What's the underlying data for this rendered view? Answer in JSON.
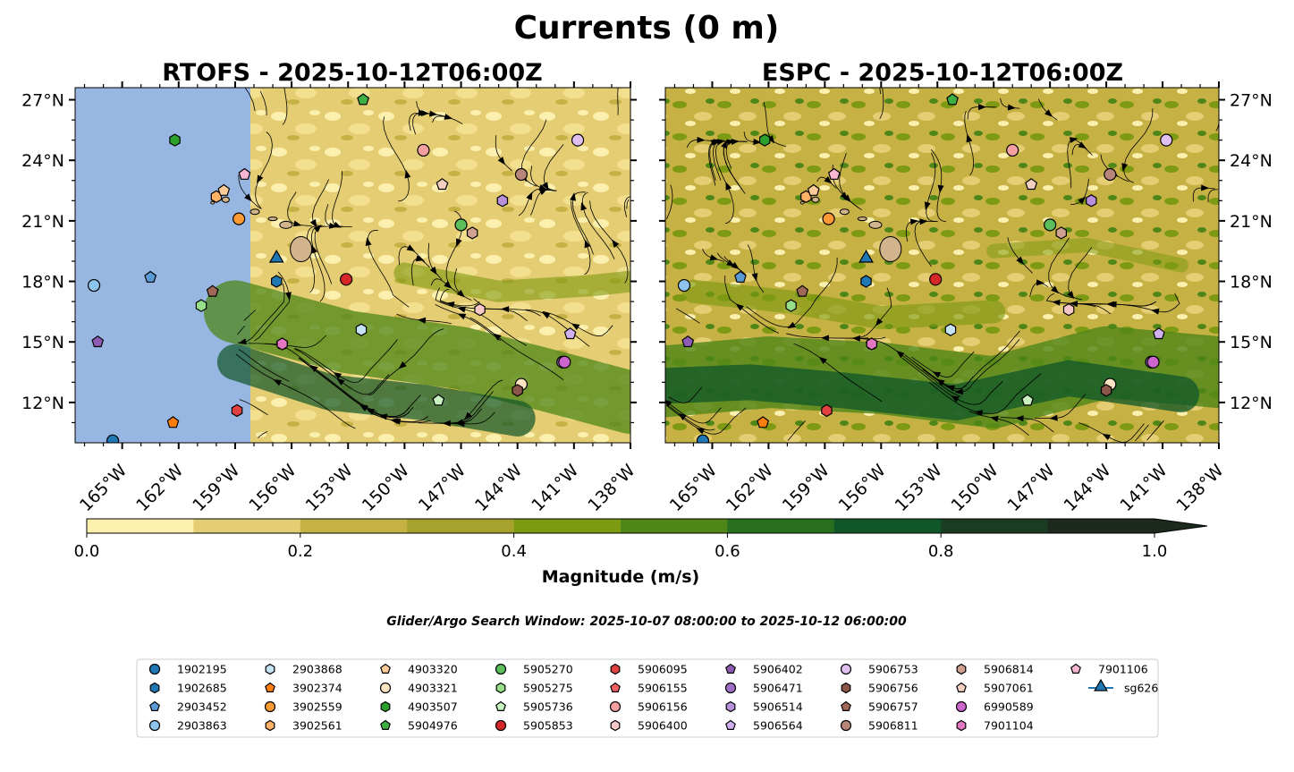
{
  "figure": {
    "title": "Currents (0 m)",
    "search_window": "Glider/Argo Search Window: 2025-10-07 08:00:00 to 2025-10-12 06:00:00"
  },
  "chart_data": [
    {
      "type": "heatmap",
      "title": "RTOFS - 2025-10-12T06:00Z",
      "lon_range": [
        -168,
        -138
      ],
      "lat_range": [
        10,
        28
      ],
      "x_ticks": [
        "165°W",
        "162°W",
        "159°W",
        "156°W",
        "153°W",
        "150°W",
        "147°W",
        "144°W",
        "141°W",
        "138°W"
      ],
      "y_ticks": [
        "27°N",
        "24°N",
        "21°N",
        "18°N",
        "15°N",
        "12°N"
      ],
      "data_extent_lon_west": -159,
      "features": [
        "Hawaiian Islands",
        "streamlines"
      ]
    },
    {
      "type": "heatmap",
      "title": "ESPC - 2025-10-12T06:00Z",
      "lon_range": [
        -168,
        -138
      ],
      "lat_range": [
        10,
        28
      ],
      "x_ticks": [
        "165°W",
        "162°W",
        "159°W",
        "156°W",
        "153°W",
        "150°W",
        "147°W",
        "144°W",
        "141°W",
        "138°W"
      ],
      "y_ticks": [
        "27°N",
        "24°N",
        "21°N",
        "18°N",
        "15°N",
        "12°N"
      ],
      "features": [
        "Hawaiian Islands",
        "streamlines"
      ]
    }
  ],
  "colorbar": {
    "label": "Magnitude (m/s)",
    "ticks": [
      "0.0",
      "0.2",
      "0.4",
      "0.6",
      "0.8",
      "1.0"
    ],
    "levels": [
      0,
      0.1,
      0.2,
      0.3,
      0.4,
      0.5,
      0.6,
      0.7,
      0.8,
      0.9,
      1.0
    ],
    "colors": [
      "#fbf0ae",
      "#e4cd72",
      "#c6b145",
      "#a5a32d",
      "#7e9a12",
      "#4e8618",
      "#2a6e20",
      "#0f5628",
      "#1a3d22",
      "#1b2a1c"
    ]
  },
  "legend": [
    {
      "label": "1902195",
      "color": "#1f77b4",
      "marker": "circle"
    },
    {
      "label": "1902685",
      "color": "#1f77b4",
      "marker": "hexagon"
    },
    {
      "label": "2903452",
      "color": "#5b9bd5",
      "marker": "pentagon"
    },
    {
      "label": "2903863",
      "color": "#8cc4eb",
      "marker": "circle"
    },
    {
      "label": "2903868",
      "color": "#c6e2f5",
      "marker": "hexagon"
    },
    {
      "label": "3902374",
      "color": "#ff7f0e",
      "marker": "pentagon"
    },
    {
      "label": "3902559",
      "color": "#ff9933",
      "marker": "circle"
    },
    {
      "label": "3902561",
      "color": "#ffb266",
      "marker": "hexagon"
    },
    {
      "label": "4903320",
      "color": "#ffcc99",
      "marker": "pentagon"
    },
    {
      "label": "4903321",
      "color": "#ffe4c4",
      "marker": "circle"
    },
    {
      "label": "4903507",
      "color": "#2ca02c",
      "marker": "hexagon"
    },
    {
      "label": "5904976",
      "color": "#3cb043",
      "marker": "pentagon"
    },
    {
      "label": "5905270",
      "color": "#5cbf5c",
      "marker": "circle"
    },
    {
      "label": "5905275",
      "color": "#98df8a",
      "marker": "hexagon"
    },
    {
      "label": "5905736",
      "color": "#c8f0c0",
      "marker": "pentagon"
    },
    {
      "label": "5905853",
      "color": "#d62728",
      "marker": "circle"
    },
    {
      "label": "5906095",
      "color": "#e04040",
      "marker": "hexagon"
    },
    {
      "label": "5906155",
      "color": "#f06060",
      "marker": "pentagon"
    },
    {
      "label": "5906156",
      "color": "#f4a0a0",
      "marker": "circle"
    },
    {
      "label": "5906400",
      "color": "#f8c8c8",
      "marker": "hexagon"
    },
    {
      "label": "5906402",
      "color": "#8c5cb4",
      "marker": "pentagon"
    },
    {
      "label": "5906471",
      "color": "#a070c8",
      "marker": "circle"
    },
    {
      "label": "5906514",
      "color": "#b890dc",
      "marker": "hexagon"
    },
    {
      "label": "5906564",
      "color": "#d0b0f0",
      "marker": "pentagon"
    },
    {
      "label": "5906753",
      "color": "#e0c0f0",
      "marker": "circle"
    },
    {
      "label": "5906756",
      "color": "#8c564b",
      "marker": "hexagon"
    },
    {
      "label": "5906757",
      "color": "#a06858",
      "marker": "pentagon"
    },
    {
      "label": "5906811",
      "color": "#b8857a",
      "marker": "circle"
    },
    {
      "label": "5906814",
      "color": "#d0a090",
      "marker": "hexagon"
    },
    {
      "label": "5907061",
      "color": "#f4d0c0",
      "marker": "pentagon"
    },
    {
      "label": "6990589",
      "color": "#cc66cc",
      "marker": "circle"
    },
    {
      "label": "7901104",
      "color": "#e377c2",
      "marker": "hexagon"
    },
    {
      "label": "7901106",
      "color": "#f7b6d2",
      "marker": "pentagon"
    },
    {
      "label": "sg626",
      "color": "#1f77b4",
      "marker": "triangle"
    }
  ],
  "floats": [
    {
      "id": "1902195",
      "lon": -165.5,
      "lat": 10.1
    },
    {
      "id": "1902685",
      "lon": -156.8,
      "lat": 18.0
    },
    {
      "id": "2903452",
      "lon": -163.5,
      "lat": 18.2
    },
    {
      "id": "2903863",
      "lon": -166.5,
      "lat": 17.8
    },
    {
      "id": "2903868",
      "lon": -152.3,
      "lat": 15.6
    },
    {
      "id": "3902374",
      "lon": -162.3,
      "lat": 11.0
    },
    {
      "id": "3902559",
      "lon": -158.8,
      "lat": 21.1
    },
    {
      "id": "3902561",
      "lon": -160.0,
      "lat": 22.2
    },
    {
      "id": "4903320",
      "lon": -159.6,
      "lat": 22.5
    },
    {
      "id": "4903321",
      "lon": -143.8,
      "lat": 12.9
    },
    {
      "id": "4903507",
      "lon": -162.2,
      "lat": 25.0
    },
    {
      "id": "5904976",
      "lon": -152.2,
      "lat": 27.0
    },
    {
      "id": "5905270",
      "lon": -147.0,
      "lat": 20.8
    },
    {
      "id": "5905275",
      "lon": -160.8,
      "lat": 16.8
    },
    {
      "id": "5905736",
      "lon": -148.2,
      "lat": 12.1
    },
    {
      "id": "5905853",
      "lon": -153.1,
      "lat": 18.1
    },
    {
      "id": "5906095",
      "lon": -158.9,
      "lat": 11.6
    },
    {
      "id": "5906155",
      "lon": -156.5,
      "lat": 14.9
    },
    {
      "id": "5906156",
      "lon": -149.0,
      "lat": 24.5
    },
    {
      "id": "5906400",
      "lon": -146.0,
      "lat": 16.6
    },
    {
      "id": "5906402",
      "lon": -166.3,
      "lat": 15.0
    },
    {
      "id": "5906471",
      "lon": -141.6,
      "lat": 14.0
    },
    {
      "id": "5906514",
      "lon": -144.8,
      "lat": 22.0
    },
    {
      "id": "5906564",
      "lon": -141.2,
      "lat": 15.4
    },
    {
      "id": "5906753",
      "lon": -140.8,
      "lat": 25.0
    },
    {
      "id": "5906756",
      "lon": -144.0,
      "lat": 12.6
    },
    {
      "id": "5906757",
      "lon": -160.2,
      "lat": 17.5
    },
    {
      "id": "5906811",
      "lon": -143.8,
      "lat": 23.3
    },
    {
      "id": "5906814",
      "lon": -146.4,
      "lat": 20.4
    },
    {
      "id": "5907061",
      "lon": -148.0,
      "lat": 22.8
    },
    {
      "id": "6990589",
      "lon": -141.5,
      "lat": 14.0
    },
    {
      "id": "7901104",
      "lon": -156.5,
      "lat": 14.9
    },
    {
      "id": "7901106",
      "lon": -158.5,
      "lat": 23.3
    },
    {
      "id": "sg626",
      "lon": -156.8,
      "lat": 19.1
    }
  ],
  "colors": {
    "no_data_fill": "#97b6e1",
    "land": "#d2b48c"
  }
}
